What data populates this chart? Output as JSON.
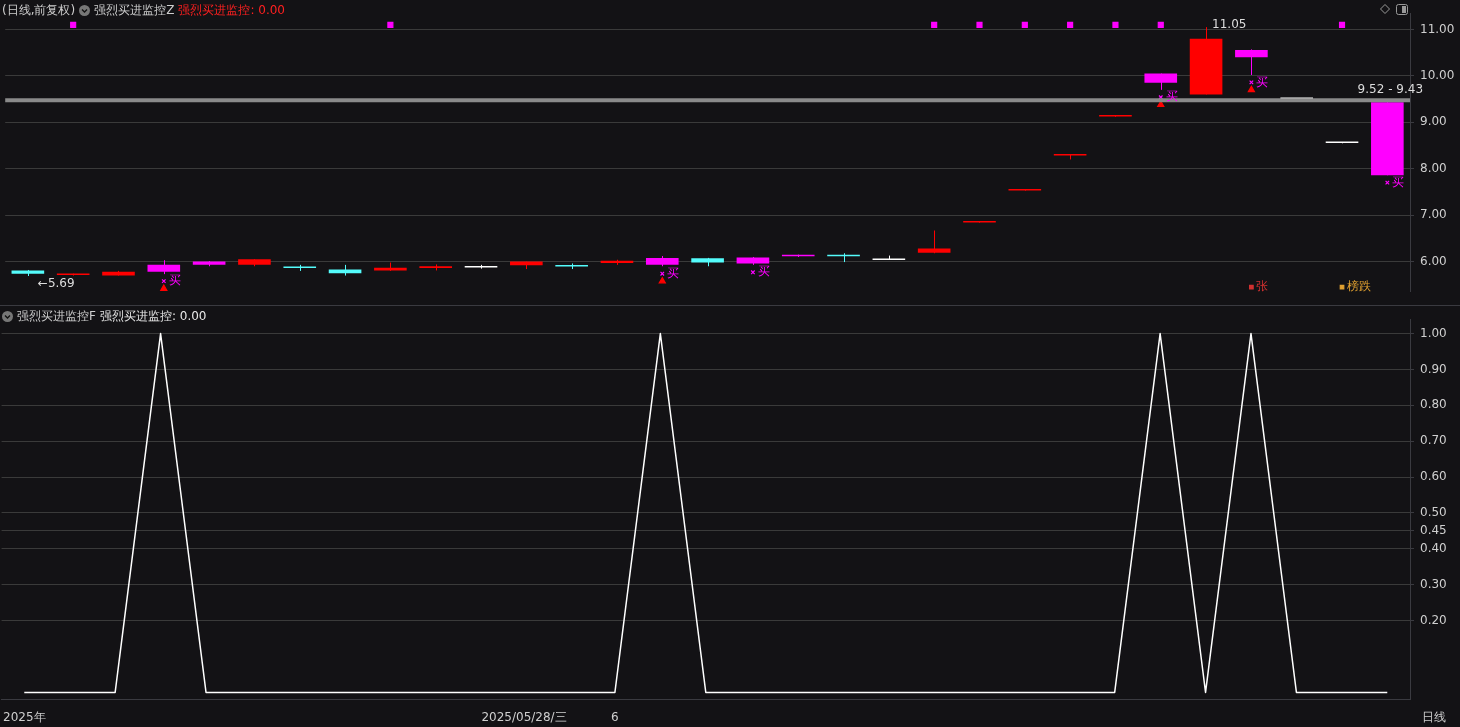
{
  "chart_data": [
    {
      "type": "candlestick",
      "title": "(日线,前复权)",
      "subtitle": "强烈买进监控Z",
      "annotations": [
        "强烈买进监控: 0.00",
        "11.05",
        "←5.69"
      ],
      "categories": [
        null,
        null,
        null,
        null,
        null,
        null,
        null,
        null,
        null,
        null,
        null,
        null,
        null,
        null,
        null,
        null,
        null,
        null,
        null,
        null,
        null,
        null,
        null,
        null,
        null,
        null,
        null,
        null,
        null,
        null,
        null
      ],
      "ohlc": [
        [
          5.81,
          5.82,
          5.69,
          5.74
        ],
        [
          5.7,
          5.74,
          5.7,
          5.73
        ],
        [
          5.7,
          5.8,
          5.7,
          5.78
        ],
        [
          5.78,
          6.03,
          5.73,
          5.93
        ],
        [
          5.93,
          6.01,
          5.9,
          6.0
        ],
        [
          5.93,
          6.05,
          5.9,
          6.05
        ],
        [
          5.88,
          5.93,
          5.8,
          5.87
        ],
        [
          5.83,
          5.93,
          5.7,
          5.75
        ],
        [
          5.81,
          5.98,
          5.8,
          5.87
        ],
        [
          5.86,
          5.94,
          5.81,
          5.9
        ],
        [
          5.89,
          5.93,
          5.85,
          5.89
        ],
        [
          5.92,
          6.0,
          5.84,
          6.0
        ],
        [
          5.91,
          5.96,
          5.84,
          5.9
        ],
        [
          5.97,
          6.04,
          5.93,
          6.02
        ],
        [
          5.93,
          6.12,
          5.9,
          6.08
        ],
        [
          6.07,
          6.08,
          5.9,
          5.98
        ],
        [
          5.96,
          6.1,
          5.93,
          6.09
        ],
        [
          6.11,
          6.15,
          6.1,
          6.13
        ],
        [
          6.13,
          6.18,
          5.99,
          6.1
        ],
        [
          6.05,
          6.13,
          6.04,
          6.05
        ],
        [
          6.19,
          6.67,
          6.18,
          6.28
        ],
        [
          6.86,
          6.86,
          6.86,
          6.86
        ],
        [
          7.55,
          7.55,
          7.55,
          7.55
        ],
        [
          8.3,
          8.31,
          8.2,
          8.3
        ],
        [
          9.14,
          9.14,
          9.14,
          9.14
        ],
        [
          9.85,
          10.05,
          9.7,
          10.05
        ],
        [
          9.6,
          11.05,
          9.6,
          10.8
        ],
        [
          10.4,
          10.57,
          10.02,
          10.56
        ],
        [
          9.52,
          9.52,
          9.52,
          9.52
        ],
        [
          8.57,
          8.57,
          8.57,
          8.57
        ],
        [
          7.86,
          9.43,
          7.86,
          9.43
        ]
      ],
      "colors": [
        "#54fcfc",
        "#ff0000",
        "#ff0000",
        "#ff00ff",
        "#ff00ff",
        "#ff0000",
        "#54fcfc",
        "#54fcfc",
        "#ff0000",
        "#ff0000",
        "#ffffff",
        "#ff0000",
        "#54fcfc",
        "#ff0000",
        "#ff00ff",
        "#54fcfc",
        "#ff00ff",
        "#ff00ff",
        "#54fcfc",
        "#ffffff",
        "#ff0000",
        "#ff0000",
        "#ff0000",
        "#ff0000",
        "#ff0000",
        "#ff00ff",
        "#ff0000",
        "#ff00ff",
        "#ffffff",
        "#ffffff",
        "#ff00ff"
      ],
      "series": [
        {
          "type": "scatter",
          "color": "#ff00ff",
          "marker": "square",
          "values": [
            null,
            11.1,
            null,
            null,
            null,
            null,
            null,
            null,
            11.1,
            null,
            null,
            null,
            null,
            null,
            null,
            null,
            null,
            null,
            null,
            null,
            11.1,
            11.1,
            11.1,
            11.1,
            11.1,
            11.1,
            null,
            null,
            null,
            11.1,
            null
          ]
        },
        {
          "type": "scatter",
          "color": "#ff00ff",
          "marker": "cross",
          "values": [
            null,
            null,
            null,
            5.58,
            null,
            null,
            null,
            null,
            null,
            null,
            null,
            null,
            null,
            null,
            5.74,
            null,
            5.77,
            null,
            null,
            null,
            null,
            null,
            null,
            null,
            null,
            9.54,
            null,
            9.86,
            null,
            null,
            7.7
          ],
          "value_labels": [
            null,
            null,
            null,
            "买",
            null,
            null,
            null,
            null,
            null,
            null,
            null,
            null,
            null,
            null,
            "买",
            null,
            "买",
            null,
            null,
            null,
            null,
            null,
            null,
            null,
            null,
            "买",
            null,
            "买",
            null,
            null,
            "买"
          ]
        },
        {
          "type": "scatter",
          "color": "#ff0000",
          "marker": "triangle",
          "values": [
            null,
            null,
            null,
            5.42,
            null,
            null,
            null,
            null,
            null,
            null,
            null,
            null,
            null,
            null,
            5.58,
            null,
            null,
            null,
            null,
            null,
            null,
            null,
            null,
            null,
            null,
            9.38,
            null,
            9.7,
            null,
            null,
            null
          ]
        },
        {
          "type": "scatter",
          "color": "#d03030",
          "marker": "square",
          "values": [
            null,
            null,
            null,
            null,
            null,
            null,
            null,
            null,
            null,
            null,
            null,
            null,
            null,
            null,
            null,
            null,
            null,
            null,
            null,
            null,
            null,
            null,
            null,
            null,
            null,
            null,
            null,
            5.45,
            null,
            null,
            null
          ],
          "value_labels": [
            null,
            null,
            null,
            null,
            null,
            null,
            null,
            null,
            null,
            null,
            null,
            null,
            null,
            null,
            null,
            null,
            null,
            null,
            null,
            null,
            null,
            null,
            null,
            null,
            null,
            null,
            null,
            "张",
            null,
            null,
            null
          ]
        },
        {
          "type": "scatter",
          "color": "#e0a030",
          "marker": "square",
          "values": [
            null,
            null,
            null,
            null,
            null,
            null,
            null,
            null,
            null,
            null,
            null,
            null,
            null,
            null,
            null,
            null,
            null,
            null,
            null,
            null,
            null,
            null,
            null,
            null,
            null,
            null,
            null,
            null,
            null,
            5.45,
            null
          ],
          "value_labels": [
            null,
            null,
            null,
            null,
            null,
            null,
            null,
            null,
            null,
            null,
            null,
            null,
            null,
            null,
            null,
            null,
            null,
            null,
            null,
            null,
            null,
            null,
            null,
            null,
            null,
            null,
            null,
            null,
            null,
            "榜跌",
            null
          ]
        }
      ],
      "ylim": [
        5.35,
        11.35
      ],
      "yticks": [
        {
          "value": 6,
          "label": "6.00"
        },
        {
          "value": 7,
          "label": "7.00"
        },
        {
          "value": 8,
          "label": "8.00"
        },
        {
          "value": 9,
          "label": "9.00"
        },
        {
          "value": 10,
          "label": "10.00"
        },
        {
          "value": 11,
          "label": "11.00"
        }
      ],
      "grid": "y",
      "tick_labels": "y",
      "bands": [
        {
          "axis": "y",
          "from": 9.43,
          "to": 9.52,
          "label": "9.52 - 9.43",
          "color": "#8a8a8a"
        }
      ]
    },
    {
      "type": "line",
      "title": "强烈买进监控F",
      "subtitle": "强烈买进监控: 0.00",
      "annotations": [
        "日线"
      ],
      "categories": [
        "2025年",
        null,
        null,
        null,
        null,
        null,
        null,
        null,
        null,
        null,
        null,
        "2025/05/28/三",
        null,
        "6",
        null,
        null,
        null,
        null,
        null,
        null,
        null,
        null,
        null,
        null,
        null,
        null,
        null,
        null,
        null,
        null,
        null
      ],
      "series": [
        {
          "color": "#ffffff",
          "values": [
            0,
            0,
            0,
            1,
            0,
            0,
            0,
            0,
            0,
            0,
            0,
            0,
            0,
            0,
            1,
            0,
            0,
            0,
            0,
            0,
            0,
            0,
            0,
            0,
            0,
            1,
            0,
            1,
            0,
            0,
            0
          ]
        }
      ],
      "ylim": [
        -0.02,
        1.04
      ],
      "yticks": [
        {
          "value": 0.2,
          "label": "0.20"
        },
        {
          "value": 0.3,
          "label": "0.30"
        },
        {
          "value": 0.4,
          "label": "0.40"
        },
        0.45,
        {
          "value": 0.5,
          "label": "0.50"
        },
        {
          "value": 0.6,
          "label": "0.60"
        },
        {
          "value": 0.7,
          "label": "0.70"
        },
        {
          "value": 0.8,
          "label": "0.80"
        },
        {
          "value": 0.9,
          "label": "0.90"
        },
        {
          "value": 1,
          "label": "1.00"
        }
      ],
      "grid": "y"
    }
  ]
}
